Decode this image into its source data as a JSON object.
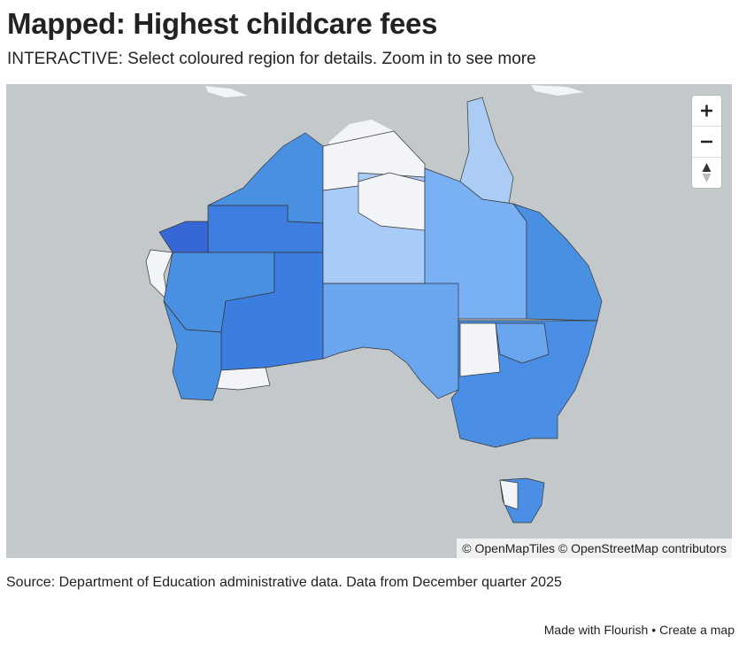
{
  "header": {
    "title": "Mapped: Highest childcare fees",
    "subtitle": "INTERACTIVE: Select coloured region for details. Zoom in to see more"
  },
  "map": {
    "attribution": "© OpenMapTiles © OpenStreetMap contributors"
  },
  "source": "Source: Department of Education administrative data. Data from December quarter 2025",
  "footer": {
    "made_with": "Made with Flourish",
    "separator": "•",
    "create": "Create a map"
  }
}
